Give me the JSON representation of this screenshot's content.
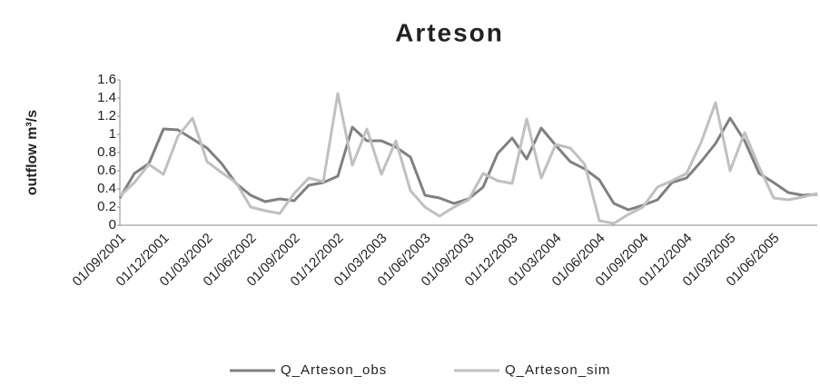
{
  "chart_data": {
    "type": "line",
    "title": "Arteson",
    "y_label": "outflow m³/s",
    "categories": [
      "01/09/2001",
      null,
      null,
      "01/12/2001",
      null,
      null,
      "01/03/2002",
      null,
      null,
      "01/06/2002",
      null,
      null,
      "01/09/2002",
      null,
      null,
      "01/12/2002",
      null,
      null,
      "01/03/2003",
      null,
      null,
      "01/06/2003",
      null,
      null,
      "01/09/2003",
      null,
      null,
      "01/12/2003",
      null,
      null,
      "01/03/2004",
      null,
      null,
      "01/06/2004",
      null,
      null,
      "01/09/2004",
      null,
      null,
      "01/12/2004",
      null,
      null,
      "01/03/2005",
      null,
      null,
      "01/06/2005",
      null,
      null,
      null
    ],
    "series": [
      {
        "name": "Q_Arteson_obs",
        "color": "#808080",
        "values": [
          0.3,
          0.57,
          0.68,
          1.06,
          1.05,
          0.95,
          0.85,
          0.68,
          0.46,
          0.33,
          0.26,
          0.29,
          0.27,
          0.44,
          0.47,
          0.54,
          1.08,
          0.93,
          0.93,
          0.86,
          0.75,
          0.33,
          0.3,
          0.24,
          0.29,
          0.42,
          0.79,
          0.96,
          0.73,
          1.07,
          0.88,
          0.7,
          0.62,
          0.5,
          0.24,
          0.17,
          0.22,
          0.28,
          0.47,
          0.52,
          0.7,
          0.9,
          1.18,
          0.93,
          0.57,
          0.47,
          0.36,
          0.33,
          0.34
        ]
      },
      {
        "name": "Q_Arteson_sim",
        "color": "#c0c0c0",
        "values": [
          0.32,
          0.47,
          0.67,
          0.56,
          0.98,
          1.18,
          0.7,
          0.58,
          0.47,
          0.2,
          0.16,
          0.13,
          0.35,
          0.52,
          0.48,
          1.45,
          0.66,
          1.06,
          0.56,
          0.93,
          0.38,
          0.2,
          0.1,
          0.2,
          0.28,
          0.57,
          0.49,
          0.46,
          1.17,
          0.52,
          0.89,
          0.85,
          0.67,
          0.05,
          0.02,
          0.12,
          0.2,
          0.42,
          0.49,
          0.57,
          0.91,
          1.35,
          0.6,
          1.02,
          0.64,
          0.3,
          0.28,
          0.31,
          0.35
        ]
      }
    ],
    "ylim": [
      0,
      1.6
    ],
    "yticks": [
      0,
      0.2,
      0.4,
      0.6,
      0.8,
      1,
      1.2,
      1.4,
      1.6
    ],
    "grid": false,
    "legend": "bottom"
  }
}
